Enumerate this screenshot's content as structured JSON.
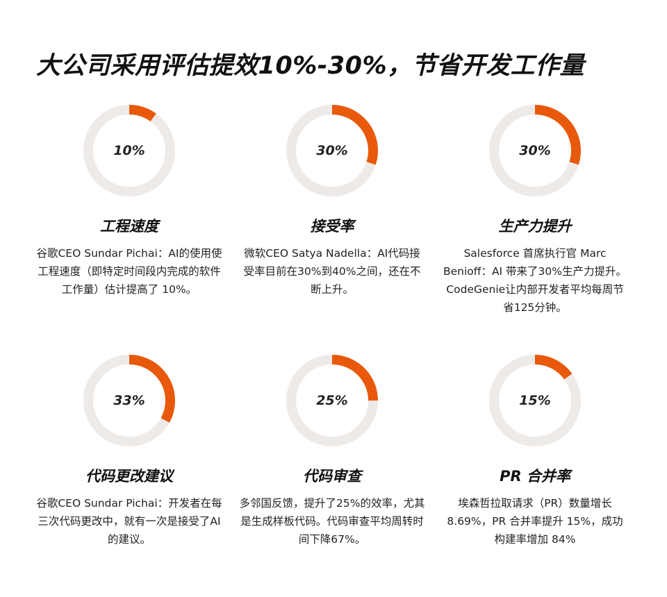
{
  "title": "大公司采用评估提效10%-30%，节省开发工作量",
  "colors": {
    "accent": "#e8590c",
    "track": "#eeeae8"
  },
  "chart_data": {
    "type": "pie",
    "items": [
      {
        "label": "10%",
        "value": 10,
        "title": "工程速度",
        "desc": "谷歌CEO Sundar Pichai：AI的使用使工程速度（即特定时间段内完成的软件工作量）估计提高了 10%。"
      },
      {
        "label": "30%",
        "value": 30,
        "title": "接受率",
        "desc": "微软CEO Satya Nadella：AI代码接受率目前在30%到40%之间，还在不断上升。"
      },
      {
        "label": "30%",
        "value": 30,
        "title": "生产力提升",
        "desc": "Salesforce 首席执行官 Marc Benioff：AI 带来了30%生产力提升。CodeGenie让内部开发者平均每周节省125分钟。"
      },
      {
        "label": "33%",
        "value": 33,
        "title": "代码更改建议",
        "desc": "谷歌CEO Sundar Pichai：开发者在每三次代码更改中，就有一次是接受了AI的建议。"
      },
      {
        "label": "25%",
        "value": 25,
        "title": "代码审查",
        "desc": "多邻国反馈，提升了25%的效率，尤其是生成样板代码。代码审查平均周转时间下降67%。"
      },
      {
        "label": "15%",
        "value": 15,
        "title": "PR 合并率",
        "desc": "埃森哲拉取请求（PR）数量增长8.69%，PR 合并率提升 15%，成功构建率增加 84%"
      }
    ]
  }
}
